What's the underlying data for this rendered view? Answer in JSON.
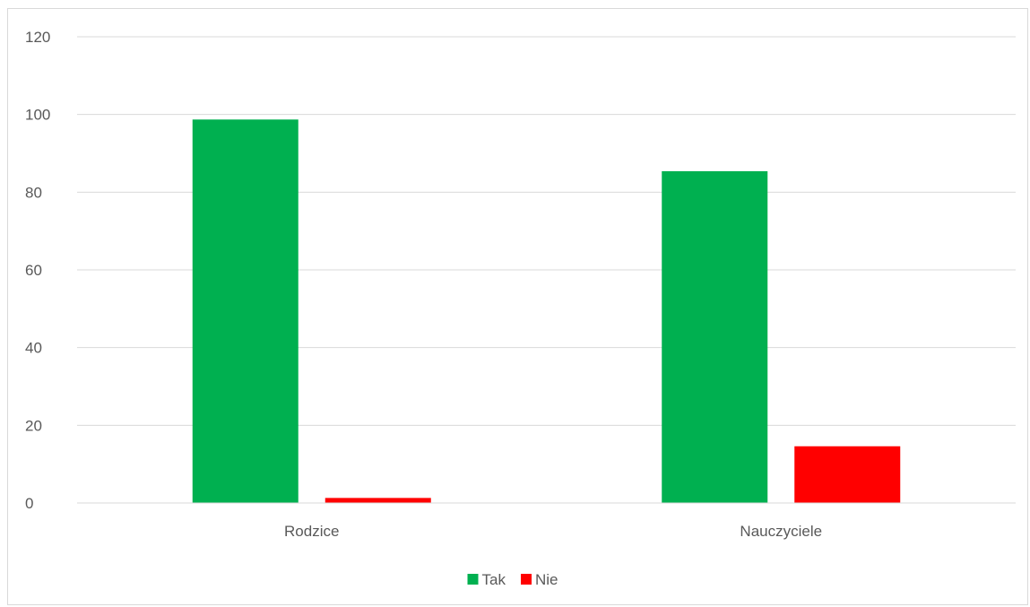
{
  "chart_data": {
    "type": "bar",
    "title": "",
    "xlabel": "",
    "ylabel": "",
    "categories": [
      "Rodzice",
      "Nauczyciele"
    ],
    "series": [
      {
        "name": "Tak",
        "values": [
          98.7,
          85.4
        ],
        "color": "#00b050"
      },
      {
        "name": "Nie",
        "values": [
          1.3,
          14.6
        ],
        "color": "#ff0000"
      }
    ],
    "ylim": [
      0,
      120
    ],
    "yticks": [
      0,
      20,
      40,
      60,
      80,
      100,
      120
    ],
    "grid": true,
    "legend": "bottom-center"
  }
}
